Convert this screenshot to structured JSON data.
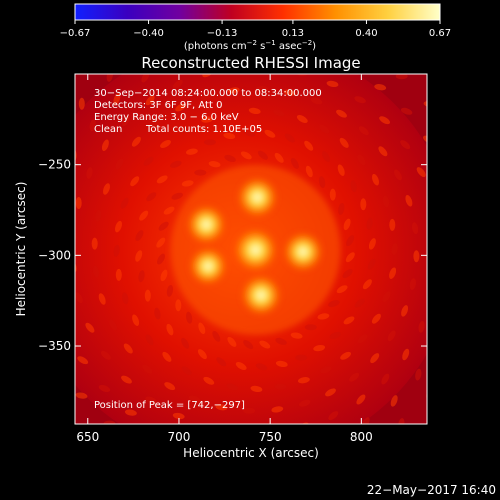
{
  "colorbar": {
    "ticks": [
      -0.67,
      -0.4,
      -0.13,
      0.13,
      0.4,
      0.67
    ],
    "tick_labels": [
      "−0.67",
      "−0.40",
      "−0.13",
      "0.13",
      "0.40",
      "0.67"
    ],
    "unit_prefix": "(photons cm",
    "unit_exp1": "−2",
    "unit_mid": " s",
    "unit_exp2": "−1",
    "unit_mid2": " asec",
    "unit_exp3": "−2",
    "unit_suffix": ")",
    "range": [
      -0.67,
      0.67
    ]
  },
  "info": {
    "time": "30−Sep−2014 08:24:00.000 to 08:34:00.000",
    "detectors": "Detectors: 3F 6F 9F, Att 0",
    "energy": "Energy Range: 3.0 − 6.0 keV",
    "clean": "Clean",
    "counts": "Total counts: 1.10E+05",
    "peak": "Position of Peak = [742,−297]"
  },
  "footer": {
    "date": "22−May−2017 16:40"
  },
  "chart_data": {
    "type": "heatmap",
    "title": "Reconstructed RHESSI Image",
    "xlabel": "Heliocentric X (arcsec)",
    "ylabel": "Heliocentric Y (arcsec)",
    "xlim": [
      643,
      836
    ],
    "ylim": [
      -393,
      -200
    ],
    "x_ticks": [
      650,
      700,
      750,
      800
    ],
    "x_tick_labels": [
      "650",
      "700",
      "750",
      "800"
    ],
    "y_ticks": [
      -250,
      -300,
      -350
    ],
    "y_tick_labels": [
      "−250",
      "−300",
      "−350"
    ],
    "colormap": [
      "#1020ff",
      "#3a00c0",
      "#7000a0",
      "#c00020",
      "#ff3000",
      "#ff9000",
      "#ffd040",
      "#ffffc8"
    ],
    "sources": [
      {
        "x": 742,
        "y": -297,
        "value": 0.67
      },
      {
        "x": 743,
        "y": -268,
        "value": 0.55
      },
      {
        "x": 715,
        "y": -283,
        "value": 0.5
      },
      {
        "x": 768,
        "y": -298,
        "value": 0.52
      },
      {
        "x": 745,
        "y": -322,
        "value": 0.55
      },
      {
        "x": 716,
        "y": -306,
        "value": 0.45
      }
    ],
    "peak": [
      742,
      -297
    ]
  }
}
